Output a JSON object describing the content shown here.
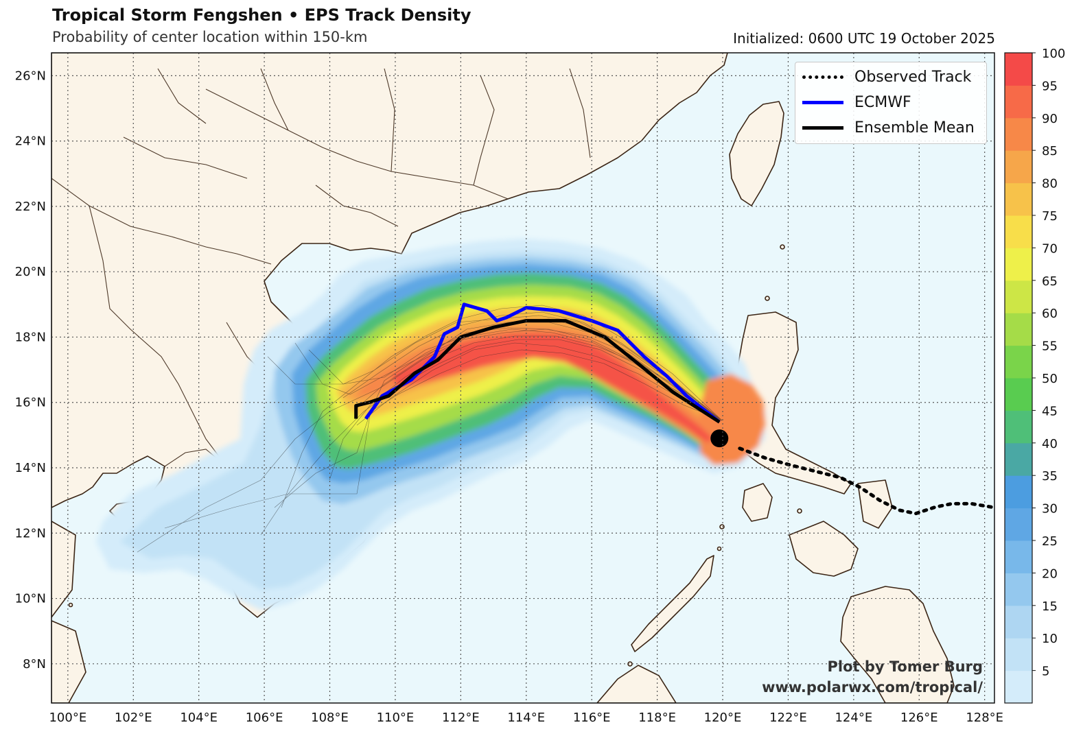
{
  "header": {
    "title": "Tropical Storm Fengshen • EPS Track Density",
    "subtitle": "Probability of center location within 150-km",
    "initialized": "Initialized: 0600 UTC 19 October 2025"
  },
  "map": {
    "lon_range": [
      99.5,
      128.3
    ],
    "lat_range": [
      6.8,
      26.7
    ],
    "lon_ticks": [
      "100°E",
      "102°E",
      "104°E",
      "106°E",
      "108°E",
      "110°E",
      "112°E",
      "114°E",
      "116°E",
      "118°E",
      "120°E",
      "122°E",
      "124°E",
      "126°E",
      "128°E"
    ],
    "lat_ticks": [
      "8°N",
      "10°N",
      "12°N",
      "14°N",
      "16°N",
      "18°N",
      "20°N",
      "22°N",
      "24°N",
      "26°N"
    ],
    "colors": {
      "ocean": "#eaf8fc",
      "land": "#fbf4e8",
      "coast": "#3a2414",
      "grid": "#555555"
    }
  },
  "legend": {
    "items": [
      {
        "label": "Observed Track",
        "style": "dotted",
        "color": "#000000"
      },
      {
        "label": "ECMWF",
        "style": "solid",
        "color": "#0000ff"
      },
      {
        "label": "Ensemble Mean",
        "style": "solid",
        "color": "#000000"
      }
    ]
  },
  "colorbar": {
    "min": 0,
    "max": 100,
    "tick_labels": [
      "5",
      "10",
      "15",
      "20",
      "25",
      "30",
      "35",
      "40",
      "45",
      "50",
      "55",
      "60",
      "65",
      "70",
      "75",
      "80",
      "85",
      "90",
      "95",
      "100"
    ],
    "colors": [
      "#d4ecfa",
      "#c2e2f6",
      "#aed6f2",
      "#94c8ee",
      "#78b8ea",
      "#5fa7e4",
      "#4c9de0",
      "#4aa8a4",
      "#4fbf78",
      "#59cc50",
      "#7ad44a",
      "#a5dc48",
      "#cde646",
      "#eef04a",
      "#f8de4a",
      "#f7c24a",
      "#f6a64a",
      "#f78848",
      "#f76a48",
      "#f44a48"
    ]
  },
  "tracks": {
    "ecmwf": [
      [
        109.1,
        15.5
      ],
      [
        109.6,
        16.2
      ],
      [
        110.5,
        16.7
      ],
      [
        111.2,
        17.4
      ],
      [
        111.5,
        18.1
      ],
      [
        111.9,
        18.3
      ],
      [
        112.1,
        19.0
      ],
      [
        112.8,
        18.8
      ],
      [
        113.1,
        18.5
      ],
      [
        113.4,
        18.6
      ],
      [
        114.0,
        18.9
      ],
      [
        115.0,
        18.8
      ],
      [
        116.0,
        18.5
      ],
      [
        116.8,
        18.2
      ],
      [
        117.6,
        17.4
      ],
      [
        118.3,
        16.8
      ],
      [
        118.9,
        16.2
      ],
      [
        119.9,
        15.4
      ]
    ],
    "ensemble_mean": [
      [
        108.8,
        15.5
      ],
      [
        108.8,
        15.9
      ],
      [
        109.2,
        16.0
      ],
      [
        109.8,
        16.2
      ],
      [
        110.6,
        16.9
      ],
      [
        111.3,
        17.3
      ],
      [
        112.0,
        18.0
      ],
      [
        113.0,
        18.3
      ],
      [
        114.0,
        18.5
      ],
      [
        115.2,
        18.5
      ],
      [
        116.4,
        18.0
      ],
      [
        117.4,
        17.2
      ],
      [
        118.5,
        16.3
      ],
      [
        119.9,
        15.4
      ]
    ],
    "observed": [
      [
        128.2,
        12.8
      ],
      [
        127.6,
        12.9
      ],
      [
        127.0,
        12.9
      ],
      [
        126.5,
        12.8
      ],
      [
        125.9,
        12.6
      ],
      [
        125.4,
        12.7
      ],
      [
        124.8,
        13.0
      ],
      [
        124.2,
        13.4
      ],
      [
        123.6,
        13.7
      ],
      [
        122.8,
        13.9
      ],
      [
        122.0,
        14.1
      ],
      [
        121.3,
        14.3
      ],
      [
        120.5,
        14.6
      ]
    ],
    "current_position": [
      119.9,
      14.9
    ]
  },
  "credits": {
    "line1": "Plot by Tomer Burg",
    "line2": "www.polarwx.com/tropical/"
  }
}
